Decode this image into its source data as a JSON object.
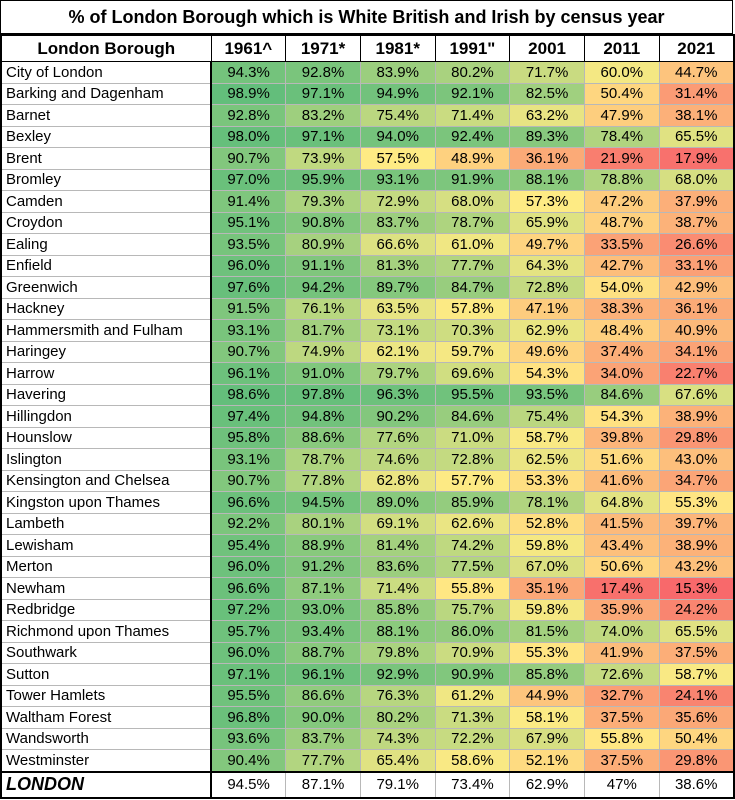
{
  "chart_data": {
    "type": "table",
    "title": "% of London Borough which is White British and Irish by census year",
    "row_header": "London Borough",
    "columns": [
      "1961^",
      "1971*",
      "1981*",
      "1991\"",
      "2001",
      "2011",
      "2021"
    ],
    "rows": [
      {
        "name": "City of London",
        "values": [
          "94.3%",
          "92.8%",
          "83.9%",
          "80.2%",
          "71.7%",
          "60.0%",
          "44.7%"
        ]
      },
      {
        "name": "Barking and Dagenham",
        "values": [
          "98.9%",
          "97.1%",
          "94.9%",
          "92.1%",
          "82.5%",
          "50.4%",
          "31.4%"
        ]
      },
      {
        "name": "Barnet",
        "values": [
          "92.8%",
          "83.2%",
          "75.4%",
          "71.4%",
          "63.2%",
          "47.9%",
          "38.1%"
        ]
      },
      {
        "name": "Bexley",
        "values": [
          "98.0%",
          "97.1%",
          "94.0%",
          "92.4%",
          "89.3%",
          "78.4%",
          "65.5%"
        ]
      },
      {
        "name": "Brent",
        "values": [
          "90.7%",
          "73.9%",
          "57.5%",
          "48.9%",
          "36.1%",
          "21.9%",
          "17.9%"
        ]
      },
      {
        "name": "Bromley",
        "values": [
          "97.0%",
          "95.9%",
          "93.1%",
          "91.9%",
          "88.1%",
          "78.8%",
          "68.0%"
        ]
      },
      {
        "name": "Camden",
        "values": [
          "91.4%",
          "79.3%",
          "72.9%",
          "68.0%",
          "57.3%",
          "47.2%",
          "37.9%"
        ]
      },
      {
        "name": "Croydon",
        "values": [
          "95.1%",
          "90.8%",
          "83.7%",
          "78.7%",
          "65.9%",
          "48.7%",
          "38.7%"
        ]
      },
      {
        "name": "Ealing",
        "values": [
          "93.5%",
          "80.9%",
          "66.6%",
          "61.0%",
          "49.7%",
          "33.5%",
          "26.6%"
        ]
      },
      {
        "name": "Enfield",
        "values": [
          "96.0%",
          "91.1%",
          "81.3%",
          "77.7%",
          "64.3%",
          "42.7%",
          "33.1%"
        ]
      },
      {
        "name": "Greenwich",
        "values": [
          "97.6%",
          "94.2%",
          "89.7%",
          "84.7%",
          "72.8%",
          "54.0%",
          "42.9%"
        ]
      },
      {
        "name": "Hackney",
        "values": [
          "91.5%",
          "76.1%",
          "63.5%",
          "57.8%",
          "47.1%",
          "38.3%",
          "36.1%"
        ]
      },
      {
        "name": "Hammersmith and Fulham",
        "values": [
          "93.1%",
          "81.7%",
          "73.1%",
          "70.3%",
          "62.9%",
          "48.4%",
          "40.9%"
        ]
      },
      {
        "name": "Haringey",
        "values": [
          "90.7%",
          "74.9%",
          "62.1%",
          "59.7%",
          "49.6%",
          "37.4%",
          "34.1%"
        ]
      },
      {
        "name": "Harrow",
        "values": [
          "96.1%",
          "91.0%",
          "79.7%",
          "69.6%",
          "54.3%",
          "34.0%",
          "22.7%"
        ]
      },
      {
        "name": "Havering",
        "values": [
          "98.6%",
          "97.8%",
          "96.3%",
          "95.5%",
          "93.5%",
          "84.6%",
          "67.6%"
        ]
      },
      {
        "name": "Hillingdon",
        "values": [
          "97.4%",
          "94.8%",
          "90.2%",
          "84.6%",
          "75.4%",
          "54.3%",
          "38.9%"
        ]
      },
      {
        "name": "Hounslow",
        "values": [
          "95.8%",
          "88.6%",
          "77.6%",
          "71.0%",
          "58.7%",
          "39.8%",
          "29.8%"
        ]
      },
      {
        "name": "Islington",
        "values": [
          "93.1%",
          "78.7%",
          "74.6%",
          "72.8%",
          "62.5%",
          "51.6%",
          "43.0%"
        ]
      },
      {
        "name": "Kensington and Chelsea",
        "values": [
          "90.7%",
          "77.8%",
          "62.8%",
          "57.7%",
          "53.3%",
          "41.6%",
          "34.7%"
        ]
      },
      {
        "name": "Kingston upon Thames",
        "values": [
          "96.6%",
          "94.5%",
          "89.0%",
          "85.9%",
          "78.1%",
          "64.8%",
          "55.3%"
        ]
      },
      {
        "name": "Lambeth",
        "values": [
          "92.2%",
          "80.1%",
          "69.1%",
          "62.6%",
          "52.8%",
          "41.5%",
          "39.7%"
        ]
      },
      {
        "name": "Lewisham",
        "values": [
          "95.4%",
          "88.9%",
          "81.4%",
          "74.2%",
          "59.8%",
          "43.4%",
          "38.9%"
        ]
      },
      {
        "name": "Merton",
        "values": [
          "96.0%",
          "91.2%",
          "83.6%",
          "77.5%",
          "67.0%",
          "50.6%",
          "43.2%"
        ]
      },
      {
        "name": "Newham",
        "values": [
          "96.6%",
          "87.1%",
          "71.4%",
          "55.8%",
          "35.1%",
          "17.4%",
          "15.3%"
        ]
      },
      {
        "name": "Redbridge",
        "values": [
          "97.2%",
          "93.0%",
          "85.8%",
          "75.7%",
          "59.8%",
          "35.9%",
          "24.2%"
        ]
      },
      {
        "name": "Richmond upon Thames",
        "values": [
          "95.7%",
          "93.4%",
          "88.1%",
          "86.0%",
          "81.5%",
          "74.0%",
          "65.5%"
        ]
      },
      {
        "name": "Southwark",
        "values": [
          "96.0%",
          "88.7%",
          "79.8%",
          "70.9%",
          "55.3%",
          "41.9%",
          "37.5%"
        ]
      },
      {
        "name": "Sutton",
        "values": [
          "97.1%",
          "96.1%",
          "92.9%",
          "90.9%",
          "85.8%",
          "72.6%",
          "58.7%"
        ]
      },
      {
        "name": "Tower Hamlets",
        "values": [
          "95.5%",
          "86.6%",
          "76.3%",
          "61.2%",
          "44.9%",
          "32.7%",
          "24.1%"
        ]
      },
      {
        "name": "Waltham Forest",
        "values": [
          "96.8%",
          "90.0%",
          "80.2%",
          "71.3%",
          "58.1%",
          "37.5%",
          "35.6%"
        ]
      },
      {
        "name": "Wandsworth",
        "values": [
          "93.6%",
          "83.7%",
          "74.3%",
          "72.2%",
          "67.9%",
          "55.8%",
          "50.4%"
        ]
      },
      {
        "name": "Westminster",
        "values": [
          "90.4%",
          "77.7%",
          "65.4%",
          "58.6%",
          "52.1%",
          "37.5%",
          "29.8%"
        ]
      }
    ],
    "total": {
      "name": "LONDON",
      "values": [
        "94.5%",
        "87.1%",
        "79.1%",
        "73.4%",
        "62.9%",
        "47%",
        "38.6%"
      ]
    },
    "color_scale": {
      "low": "#f8696b",
      "mid": "#ffeb84",
      "high": "#63be7b",
      "min_value": 15.3,
      "max_value": 98.9
    }
  }
}
